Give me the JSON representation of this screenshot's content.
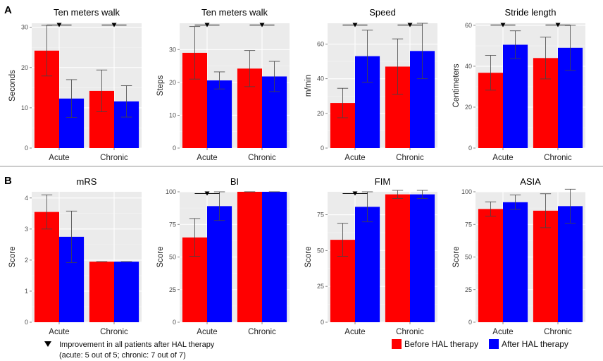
{
  "panels": [
    {
      "label": "A"
    },
    {
      "label": "B"
    }
  ],
  "legend": {
    "before": {
      "label": "Before HAL therapy",
      "color": "#ff0000"
    },
    "after": {
      "label": "After HAL therapy",
      "color": "#0000ff"
    }
  },
  "note": {
    "line1": "Improvement in all patients after HAL therapy",
    "line2": "(acute: 5 out of 5; chronic: 7 out of 7)"
  },
  "chart_data": [
    {
      "type": "bar",
      "title": "Ten meters walk",
      "ylabel": "Seconds",
      "categories": [
        "Acute",
        "Chronic"
      ],
      "ylim": [
        0,
        31
      ],
      "ticks": [
        0,
        10,
        20,
        30
      ],
      "series": [
        {
          "name": "Before HAL therapy",
          "values": [
            24.2,
            14.2
          ],
          "errors": [
            6.3,
            5.2
          ]
        },
        {
          "name": "After HAL therapy",
          "values": [
            12.3,
            11.6
          ],
          "errors": [
            4.7,
            3.9
          ]
        }
      ],
      "improved": [
        true,
        true
      ]
    },
    {
      "type": "bar",
      "title": "Ten meters walk",
      "ylabel": "Steps",
      "categories": [
        "Acute",
        "Chronic"
      ],
      "ylim": [
        0,
        38
      ],
      "ticks": [
        0,
        10,
        20,
        30
      ],
      "series": [
        {
          "name": "Before HAL therapy",
          "values": [
            29,
            24.2
          ],
          "errors": [
            8,
            5.5
          ]
        },
        {
          "name": "After HAL therapy",
          "values": [
            20.6,
            21.8
          ],
          "errors": [
            2.6,
            4.6
          ]
        }
      ],
      "improved": [
        true,
        true
      ]
    },
    {
      "type": "bar",
      "title": "Speed",
      "ylabel": "m/min",
      "categories": [
        "Acute",
        "Chronic"
      ],
      "ylim": [
        0,
        72
      ],
      "ticks": [
        0,
        20,
        40,
        60
      ],
      "series": [
        {
          "name": "Before HAL therapy",
          "values": [
            26,
            47
          ],
          "errors": [
            8.5,
            16
          ]
        },
        {
          "name": "After HAL therapy",
          "values": [
            53,
            56
          ],
          "errors": [
            15,
            16
          ]
        }
      ],
      "improved": [
        true,
        true
      ]
    },
    {
      "type": "bar",
      "title": "Stride length",
      "ylabel": "Centimeters",
      "categories": [
        "Acute",
        "Chronic"
      ],
      "ylim": [
        0,
        61
      ],
      "ticks": [
        0,
        20,
        40,
        60
      ],
      "series": [
        {
          "name": "Before HAL therapy",
          "values": [
            36.8,
            44
          ],
          "errors": [
            8.5,
            10.2
          ]
        },
        {
          "name": "After HAL therapy",
          "values": [
            50.5,
            49
          ],
          "errors": [
            6.8,
            11
          ]
        }
      ],
      "improved": [
        true,
        true
      ]
    },
    {
      "type": "bar",
      "title": "mRS",
      "ylabel": "Score",
      "categories": [
        "Acute",
        "Chronic"
      ],
      "ylim": [
        0,
        4.2
      ],
      "ticks": [
        0,
        1,
        2,
        3,
        4
      ],
      "series": [
        {
          "name": "Before HAL therapy",
          "values": [
            3.55,
            1.95
          ],
          "errors": [
            0.55,
            0
          ]
        },
        {
          "name": "After HAL therapy",
          "values": [
            2.75,
            1.95
          ],
          "errors": [
            0.83,
            0
          ]
        }
      ],
      "improved": [
        false,
        false
      ]
    },
    {
      "type": "bar",
      "title": "BI",
      "ylabel": "Score",
      "categories": [
        "Acute",
        "Chronic"
      ],
      "ylim": [
        0,
        100
      ],
      "ticks": [
        0,
        25,
        50,
        75,
        100
      ],
      "series": [
        {
          "name": "Before HAL therapy",
          "values": [
            65,
            100
          ],
          "errors": [
            14.5,
            0
          ]
        },
        {
          "name": "After HAL therapy",
          "values": [
            89,
            100
          ],
          "errors": [
            11,
            0
          ]
        }
      ],
      "improved": [
        true,
        false
      ]
    },
    {
      "type": "bar",
      "title": "FIM",
      "ylabel": "Score",
      "categories": [
        "Acute",
        "Chronic"
      ],
      "ylim": [
        0,
        91
      ],
      "ticks": [
        0,
        25,
        50,
        75
      ],
      "series": [
        {
          "name": "Before HAL therapy",
          "values": [
            57.5,
            89.2
          ],
          "errors": [
            11.5,
            2.8
          ]
        },
        {
          "name": "After HAL therapy",
          "values": [
            80.5,
            89.2
          ],
          "errors": [
            10.5,
            2.8
          ]
        }
      ],
      "improved": [
        true,
        false
      ]
    },
    {
      "type": "bar",
      "title": "ASIA",
      "ylabel": "Score",
      "categories": [
        "Acute",
        "Chronic"
      ],
      "ylim": [
        0,
        100
      ],
      "ticks": [
        0,
        25,
        50,
        75,
        100
      ],
      "series": [
        {
          "name": "Before HAL therapy",
          "values": [
            86.8,
            85.5
          ],
          "errors": [
            5.5,
            13
          ]
        },
        {
          "name": "After HAL therapy",
          "values": [
            92,
            89
          ],
          "errors": [
            5.5,
            13
          ]
        }
      ],
      "improved": [
        false,
        false
      ]
    }
  ]
}
